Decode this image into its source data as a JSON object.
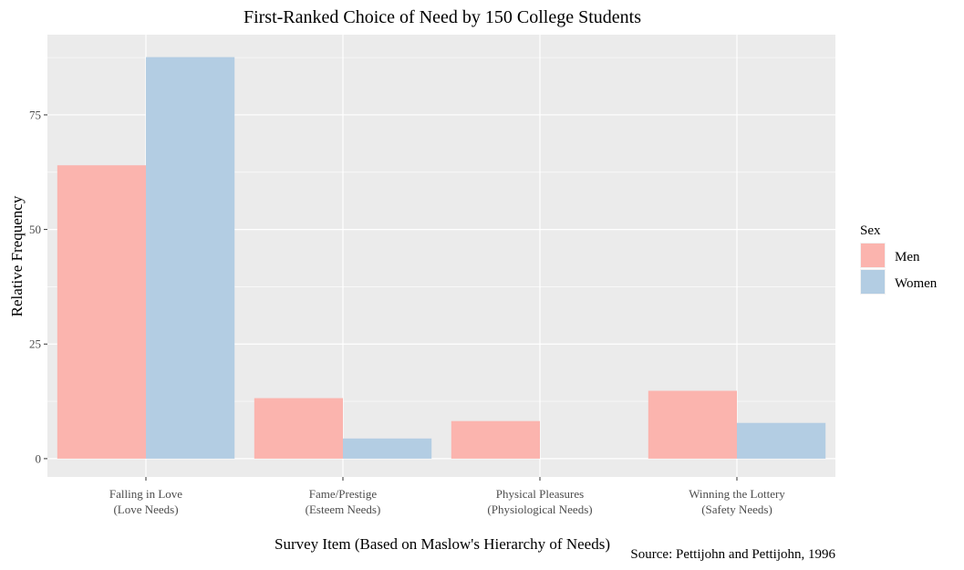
{
  "chart_data": {
    "type": "bar",
    "title": "First-Ranked Choice of Need by 150 College Students",
    "xlabel": "Survey Item (Based on Maslow's Hierarchy of Needs)",
    "ylabel": "Relative Frequency",
    "caption": "Source: Pettijohn and Pettijohn, 1996",
    "categories": [
      [
        "Falling in Love",
        "(Love Needs)"
      ],
      [
        "Fame/Prestige",
        "(Esteem Needs)"
      ],
      [
        "Physical Pleasures",
        "(Physiological Needs)"
      ],
      [
        "Winning the Lottery",
        "(Safety Needs)"
      ]
    ],
    "series": [
      {
        "name": "Men",
        "values": [
          64,
          13.2,
          8.2,
          14.8
        ],
        "color": "#FBB4AE"
      },
      {
        "name": "Women",
        "values": [
          87.6,
          4.4,
          0,
          7.8
        ],
        "color": "#B3CDE3"
      }
    ],
    "ylim": [
      -4,
      92.5
    ],
    "yticks": [
      0,
      25,
      50,
      75
    ],
    "grid": true,
    "panel_background": "#EBEBEB",
    "legend": {
      "title": "Sex",
      "position": "right"
    }
  }
}
